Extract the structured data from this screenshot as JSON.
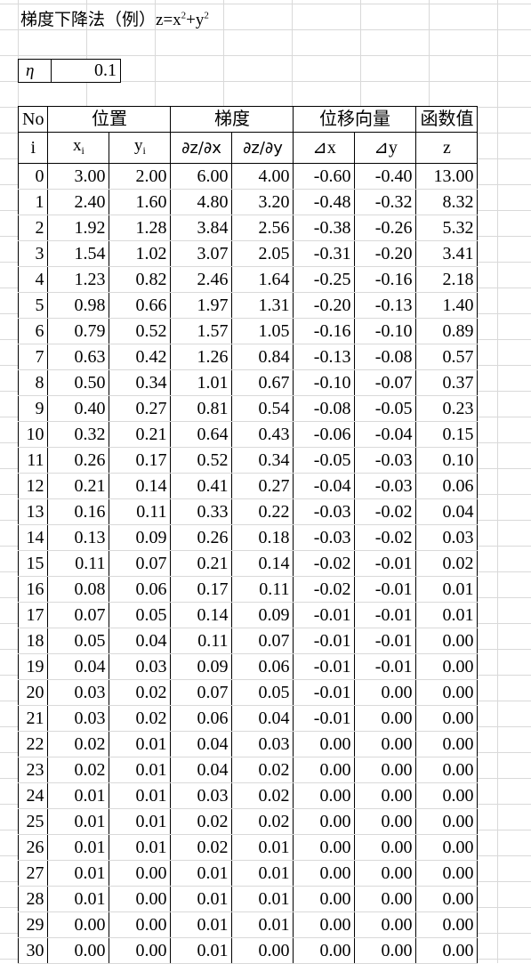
{
  "title": {
    "main": "梯度下降法（例）",
    "formula_prefix": "z=x",
    "exp1": "2",
    "plus": "+y",
    "exp2": "2"
  },
  "param": {
    "name": "η",
    "value": "0.1"
  },
  "headers": {
    "no": "No",
    "position": "位置",
    "gradient": "梯度",
    "displacement": "位移向量",
    "function_value": "函数值",
    "i": "i",
    "x": "x",
    "y": "y",
    "sub_i": "i",
    "dz_dx": "∂z/∂x",
    "dz_dy": "∂z/∂y",
    "delta_x": "⊿x",
    "delta_y": "⊿y",
    "z": "z"
  },
  "rows": [
    [
      "0",
      "3.00",
      "2.00",
      "6.00",
      "4.00",
      "-0.60",
      "-0.40",
      "13.00"
    ],
    [
      "1",
      "2.40",
      "1.60",
      "4.80",
      "3.20",
      "-0.48",
      "-0.32",
      "8.32"
    ],
    [
      "2",
      "1.92",
      "1.28",
      "3.84",
      "2.56",
      "-0.38",
      "-0.26",
      "5.32"
    ],
    [
      "3",
      "1.54",
      "1.02",
      "3.07",
      "2.05",
      "-0.31",
      "-0.20",
      "3.41"
    ],
    [
      "4",
      "1.23",
      "0.82",
      "2.46",
      "1.64",
      "-0.25",
      "-0.16",
      "2.18"
    ],
    [
      "5",
      "0.98",
      "0.66",
      "1.97",
      "1.31",
      "-0.20",
      "-0.13",
      "1.40"
    ],
    [
      "6",
      "0.79",
      "0.52",
      "1.57",
      "1.05",
      "-0.16",
      "-0.10",
      "0.89"
    ],
    [
      "7",
      "0.63",
      "0.42",
      "1.26",
      "0.84",
      "-0.13",
      "-0.08",
      "0.57"
    ],
    [
      "8",
      "0.50",
      "0.34",
      "1.01",
      "0.67",
      "-0.10",
      "-0.07",
      "0.37"
    ],
    [
      "9",
      "0.40",
      "0.27",
      "0.81",
      "0.54",
      "-0.08",
      "-0.05",
      "0.23"
    ],
    [
      "10",
      "0.32",
      "0.21",
      "0.64",
      "0.43",
      "-0.06",
      "-0.04",
      "0.15"
    ],
    [
      "11",
      "0.26",
      "0.17",
      "0.52",
      "0.34",
      "-0.05",
      "-0.03",
      "0.10"
    ],
    [
      "12",
      "0.21",
      "0.14",
      "0.41",
      "0.27",
      "-0.04",
      "-0.03",
      "0.06"
    ],
    [
      "13",
      "0.16",
      "0.11",
      "0.33",
      "0.22",
      "-0.03",
      "-0.02",
      "0.04"
    ],
    [
      "14",
      "0.13",
      "0.09",
      "0.26",
      "0.18",
      "-0.03",
      "-0.02",
      "0.03"
    ],
    [
      "15",
      "0.11",
      "0.07",
      "0.21",
      "0.14",
      "-0.02",
      "-0.01",
      "0.02"
    ],
    [
      "16",
      "0.08",
      "0.06",
      "0.17",
      "0.11",
      "-0.02",
      "-0.01",
      "0.01"
    ],
    [
      "17",
      "0.07",
      "0.05",
      "0.14",
      "0.09",
      "-0.01",
      "-0.01",
      "0.01"
    ],
    [
      "18",
      "0.05",
      "0.04",
      "0.11",
      "0.07",
      "-0.01",
      "-0.01",
      "0.00"
    ],
    [
      "19",
      "0.04",
      "0.03",
      "0.09",
      "0.06",
      "-0.01",
      "-0.01",
      "0.00"
    ],
    [
      "20",
      "0.03",
      "0.02",
      "0.07",
      "0.05",
      "-0.01",
      "0.00",
      "0.00"
    ],
    [
      "21",
      "0.03",
      "0.02",
      "0.06",
      "0.04",
      "-0.01",
      "0.00",
      "0.00"
    ],
    [
      "22",
      "0.02",
      "0.01",
      "0.04",
      "0.03",
      "0.00",
      "0.00",
      "0.00"
    ],
    [
      "23",
      "0.02",
      "0.01",
      "0.04",
      "0.02",
      "0.00",
      "0.00",
      "0.00"
    ],
    [
      "24",
      "0.01",
      "0.01",
      "0.03",
      "0.02",
      "0.00",
      "0.00",
      "0.00"
    ],
    [
      "25",
      "0.01",
      "0.01",
      "0.02",
      "0.02",
      "0.00",
      "0.00",
      "0.00"
    ],
    [
      "26",
      "0.01",
      "0.01",
      "0.02",
      "0.01",
      "0.00",
      "0.00",
      "0.00"
    ],
    [
      "27",
      "0.01",
      "0.00",
      "0.01",
      "0.01",
      "0.00",
      "0.00",
      "0.00"
    ],
    [
      "28",
      "0.01",
      "0.00",
      "0.01",
      "0.01",
      "0.00",
      "0.00",
      "0.00"
    ],
    [
      "29",
      "0.00",
      "0.00",
      "0.01",
      "0.01",
      "0.00",
      "0.00",
      "0.00"
    ],
    [
      "30",
      "0.00",
      "0.00",
      "0.01",
      "0.00",
      "0.00",
      "0.00",
      "0.00"
    ]
  ]
}
